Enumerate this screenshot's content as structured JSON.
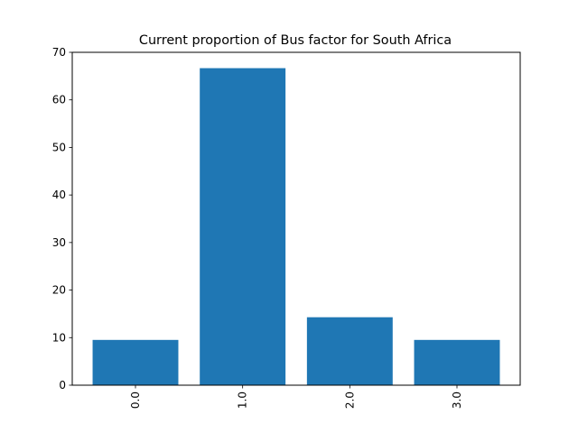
{
  "chart_data": {
    "type": "bar",
    "title": "Current proportion of Bus factor for South Africa",
    "xlabel": "",
    "ylabel": "",
    "categories": [
      "0.0",
      "1.0",
      "2.0",
      "3.0"
    ],
    "values": [
      9.52,
      66.67,
      14.29,
      9.52
    ],
    "ylim": [
      0,
      70
    ],
    "yticks": [
      0,
      10,
      20,
      30,
      40,
      50,
      60,
      70
    ],
    "bar_color": "#1f77b4",
    "grid": false,
    "xtick_rotation": 90
  }
}
